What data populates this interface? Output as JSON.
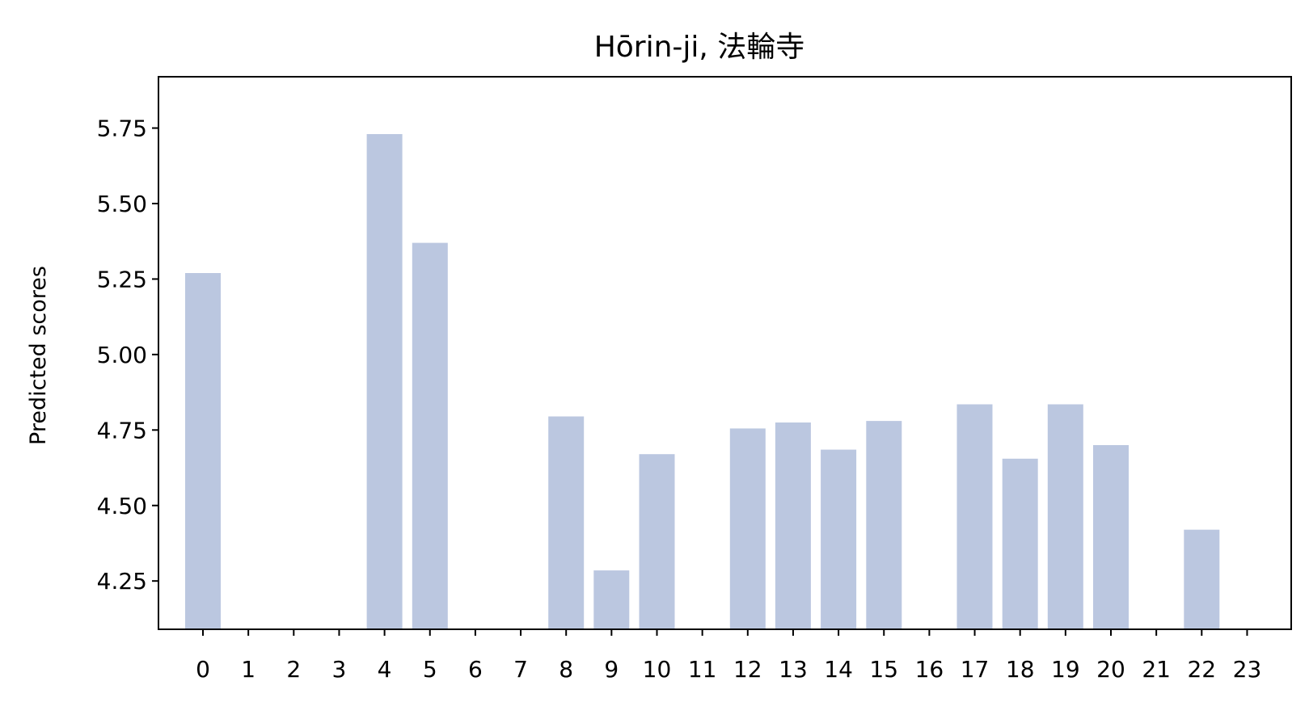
{
  "chart_data": {
    "type": "bar",
    "title": "Hōrin-ji, 法輪寺",
    "xlabel": "",
    "ylabel": "Predicted scores",
    "categories": [
      "0",
      "1",
      "2",
      "3",
      "4",
      "5",
      "6",
      "7",
      "8",
      "9",
      "10",
      "11",
      "12",
      "13",
      "14",
      "15",
      "16",
      "17",
      "18",
      "19",
      "20",
      "21",
      "22",
      "23"
    ],
    "values": [
      5.27,
      null,
      null,
      null,
      5.73,
      5.37,
      null,
      null,
      4.795,
      4.285,
      4.67,
      null,
      4.755,
      4.775,
      4.685,
      4.78,
      null,
      4.835,
      4.655,
      4.835,
      4.7,
      null,
      4.42,
      null
    ],
    "ylim": [
      4.09,
      5.92
    ],
    "yticks": [
      4.25,
      4.5,
      4.75,
      5.0,
      5.25,
      5.5,
      5.75
    ],
    "ytick_labels": [
      "4.25",
      "4.50",
      "4.75",
      "5.00",
      "5.25",
      "5.50",
      "5.75"
    ],
    "bar_color": "#bbc7e0",
    "grid": false
  }
}
